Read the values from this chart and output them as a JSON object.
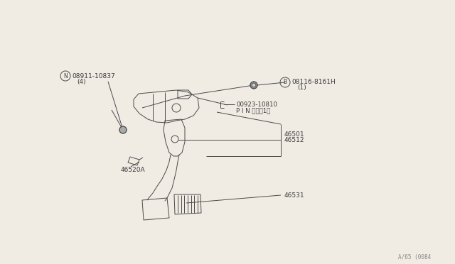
{
  "bg_color": "#f0ece4",
  "line_color": "#4a4a4a",
  "text_color": "#3a3a3a",
  "figure_width": 6.4,
  "figure_height": 3.72,
  "dpi": 100,
  "watermark": "A/65 (0084",
  "labels": {
    "N_part": "08911-10837",
    "N_sub": "(4)",
    "B_part": "08116-8161H",
    "B_sub": "(1)",
    "pin_part": "00923-10810",
    "pin_sub": "P I N ピン（1）",
    "part_46512": "46512",
    "part_46501": "46501",
    "part_46520A": "46520A",
    "part_46531": "46531"
  }
}
